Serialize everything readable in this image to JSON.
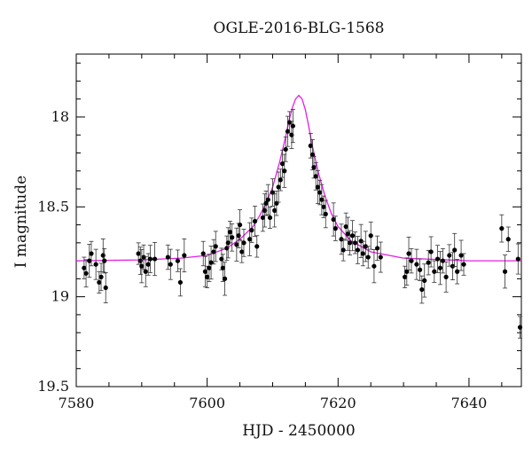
{
  "chart_data": {
    "type": "scatter",
    "title": "OGLE-2016-BLG-1568",
    "xlabel": "HJD - 2450000",
    "ylabel": "I magnitude",
    "xlim": [
      7580,
      7648
    ],
    "ylim": [
      19.5,
      17.65
    ],
    "y_inverted": true,
    "xticks": [
      "7580",
      "7600",
      "7620",
      "7640"
    ],
    "yticks": [
      "18",
      "18.5",
      "19",
      "19.5"
    ],
    "grid": false,
    "colors": {
      "points": "#000000",
      "model": "#e61ee6"
    },
    "model": {
      "name": "",
      "x": [
        7580,
        7590,
        7596,
        7600,
        7603,
        7605,
        7607,
        7608,
        7609,
        7610,
        7611,
        7612,
        7612.5,
        7613,
        7613.5,
        7614,
        7614.5,
        7615,
        7615.5,
        7616,
        7617,
        7618,
        7619,
        7620,
        7622,
        7625,
        7630,
        7640,
        7648
      ],
      "y": [
        18.8,
        18.795,
        18.785,
        18.77,
        18.73,
        18.68,
        18.61,
        18.55,
        18.48,
        18.39,
        18.26,
        18.11,
        18.02,
        17.95,
        17.9,
        17.88,
        17.9,
        17.96,
        18.05,
        18.15,
        18.31,
        18.44,
        18.54,
        18.61,
        18.69,
        18.75,
        18.785,
        18.8,
        18.8
      ]
    },
    "series": [
      {
        "name": "",
        "points": [
          [
            7581.2,
            18.84
          ],
          [
            7581.5,
            18.87
          ],
          [
            7582.0,
            18.8
          ],
          [
            7582.3,
            18.76
          ],
          [
            7583.0,
            18.82
          ],
          [
            7583.5,
            18.92
          ],
          [
            7583.8,
            18.89
          ],
          [
            7584.1,
            18.77
          ],
          [
            7584.3,
            18.8
          ],
          [
            7584.5,
            18.95
          ],
          [
            7589.5,
            18.76
          ],
          [
            7589.8,
            18.8
          ],
          [
            7590.0,
            18.83
          ],
          [
            7590.3,
            18.78
          ],
          [
            7590.6,
            18.86
          ],
          [
            7591.0,
            18.82
          ],
          [
            7591.3,
            18.79
          ],
          [
            7592.0,
            18.79
          ],
          [
            7594.0,
            18.78
          ],
          [
            7594.4,
            18.82
          ],
          [
            7595.5,
            18.8
          ],
          [
            7595.9,
            18.92
          ],
          [
            7596.5,
            18.77
          ],
          [
            7599.4,
            18.76
          ],
          [
            7599.7,
            18.86
          ],
          [
            7600.0,
            18.89
          ],
          [
            7600.3,
            18.84
          ],
          [
            7600.6,
            18.81
          ],
          [
            7601.0,
            18.75
          ],
          [
            7601.3,
            18.72
          ],
          [
            7602.2,
            18.79
          ],
          [
            7602.4,
            18.84
          ],
          [
            7602.7,
            18.9
          ],
          [
            7603.0,
            18.73
          ],
          [
            7603.2,
            18.7
          ],
          [
            7603.5,
            18.64
          ],
          [
            7603.8,
            18.67
          ],
          [
            7604.5,
            18.71
          ],
          [
            7604.8,
            18.66
          ],
          [
            7605.0,
            18.6
          ],
          [
            7605.3,
            18.75
          ],
          [
            7605.6,
            18.7
          ],
          [
            7606.5,
            18.68
          ],
          [
            7606.8,
            18.63
          ],
          [
            7607.3,
            18.58
          ],
          [
            7607.6,
            18.72
          ],
          [
            7608.5,
            18.56
          ],
          [
            7608.8,
            18.52
          ],
          [
            7609.0,
            18.48
          ],
          [
            7609.3,
            18.46
          ],
          [
            7609.6,
            18.56
          ],
          [
            7610.0,
            18.42
          ],
          [
            7610.3,
            18.52
          ],
          [
            7610.6,
            18.48
          ],
          [
            7610.9,
            18.39
          ],
          [
            7611.2,
            18.35
          ],
          [
            7611.5,
            18.26
          ],
          [
            7611.8,
            18.3
          ],
          [
            7612.0,
            18.18
          ],
          [
            7612.3,
            18.08
          ],
          [
            7612.6,
            18.03
          ],
          [
            7612.9,
            18.1
          ],
          [
            7613.1,
            18.05
          ],
          [
            7615.8,
            18.16
          ],
          [
            7616.1,
            18.21
          ],
          [
            7616.3,
            18.28
          ],
          [
            7616.6,
            18.33
          ],
          [
            7616.9,
            18.39
          ],
          [
            7617.2,
            18.42
          ],
          [
            7617.5,
            18.46
          ],
          [
            7617.8,
            18.5
          ],
          [
            7618.1,
            18.54
          ],
          [
            7619.3,
            18.57
          ],
          [
            7619.6,
            18.62
          ],
          [
            7620.5,
            18.68
          ],
          [
            7620.8,
            18.74
          ],
          [
            7621.2,
            18.61
          ],
          [
            7621.5,
            18.65
          ],
          [
            7621.8,
            18.7
          ],
          [
            7622.2,
            18.66
          ],
          [
            7622.6,
            18.7
          ],
          [
            7623.0,
            18.74
          ],
          [
            7623.5,
            18.69
          ],
          [
            7623.8,
            18.76
          ],
          [
            7624.2,
            18.72
          ],
          [
            7624.6,
            18.78
          ],
          [
            7625.0,
            18.66
          ],
          [
            7625.5,
            18.83
          ],
          [
            7626.0,
            18.73
          ],
          [
            7626.5,
            18.78
          ],
          [
            7630.2,
            18.89
          ],
          [
            7630.5,
            18.86
          ],
          [
            7630.8,
            18.76
          ],
          [
            7631.2,
            18.8
          ],
          [
            7632.0,
            18.82
          ],
          [
            7632.5,
            18.85
          ],
          [
            7632.8,
            18.96
          ],
          [
            7633.2,
            18.91
          ],
          [
            7633.8,
            18.81
          ],
          [
            7634.2,
            18.75
          ],
          [
            7634.7,
            18.86
          ],
          [
            7635.2,
            18.79
          ],
          [
            7635.6,
            18.84
          ],
          [
            7636.0,
            18.8
          ],
          [
            7636.5,
            18.89
          ],
          [
            7637.0,
            18.77
          ],
          [
            7637.5,
            18.83
          ],
          [
            7637.8,
            18.74
          ],
          [
            7638.2,
            18.86
          ],
          [
            7638.8,
            18.77
          ],
          [
            7639.2,
            18.82
          ],
          [
            7645.0,
            18.62
          ],
          [
            7645.5,
            18.86
          ],
          [
            7646.0,
            18.68
          ],
          [
            7647.5,
            18.79
          ],
          [
            7647.8,
            19.17
          ]
        ]
      }
    ]
  }
}
